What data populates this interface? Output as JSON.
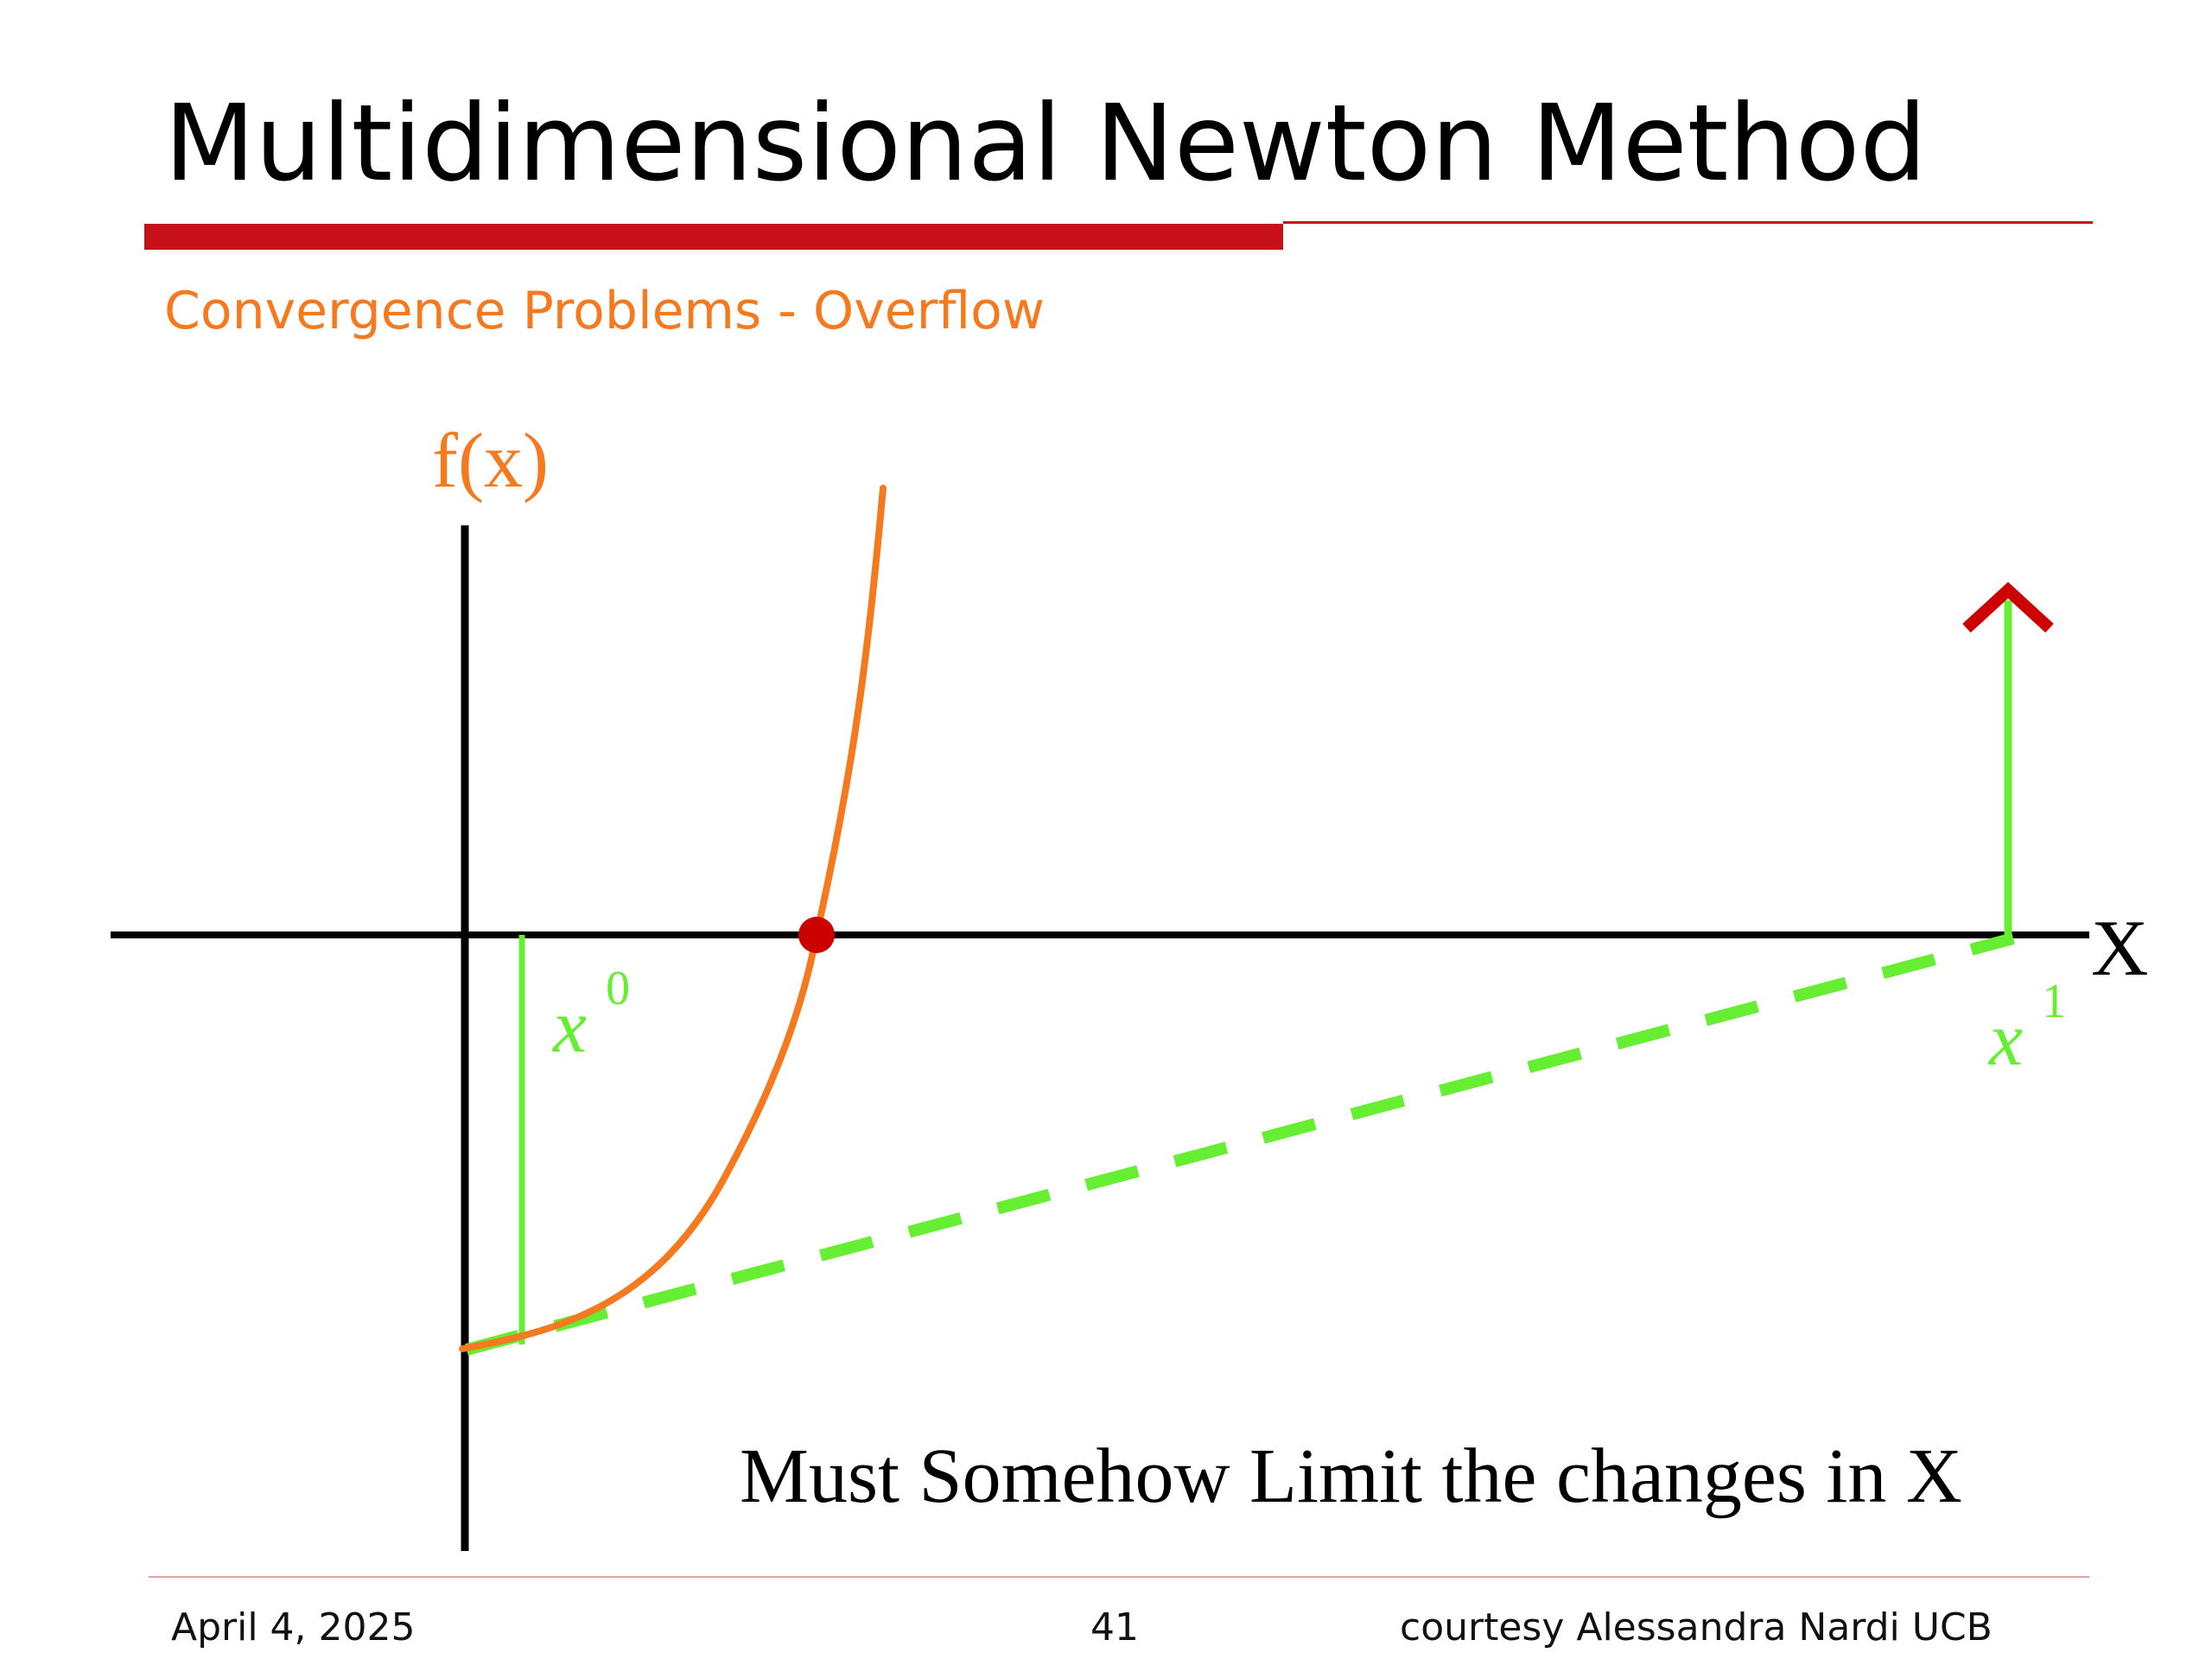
{
  "slide": {
    "title": "Multidimensional Newton Method",
    "subtitle": "Convergence Problems - Overflow",
    "accent_color": "#c8101a",
    "subtitle_color": "#f57a1f"
  },
  "diagram": {
    "y_axis_label": "f(x)",
    "x_axis_label": "X",
    "x0_label": {
      "base": "x",
      "sup": "0"
    },
    "x1_label": {
      "base": "x",
      "sup": "1"
    },
    "caption": "Must Somehow Limit the changes in X",
    "curve_color": "#f57a1f",
    "tangent_color": "#66ee33",
    "root_marker_color": "#cc0000",
    "arrow_head_color": "#cc0000",
    "axis_color": "#000000"
  },
  "footer": {
    "date": "April 4, 2025",
    "page": "41",
    "credit": "courtesy Alessandra Nardi UCB"
  }
}
